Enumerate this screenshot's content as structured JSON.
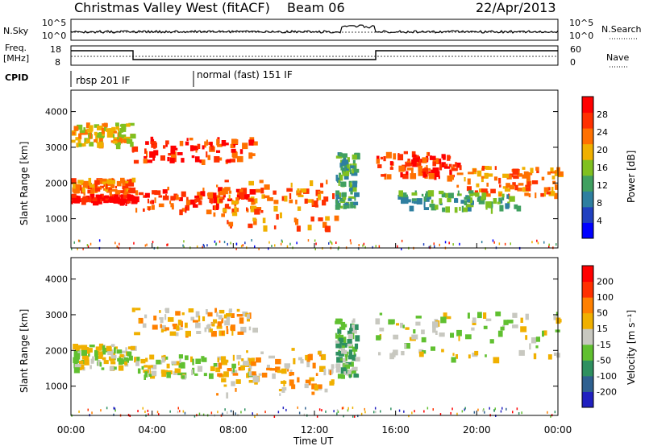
{
  "header": {
    "station": "Christmas Valley West (fitACF)",
    "beam": "Beam 06",
    "date": "22/Apr/2013"
  },
  "noise_panel": {
    "left_label": "N.Sky",
    "left_ticks": [
      "10^5",
      "10^0"
    ],
    "right_ticks": [
      "10^5",
      "10^0"
    ],
    "right_label": "N.Search"
  },
  "freq_panel": {
    "left_label_1": "Freq.",
    "left_label_2": "[MHz]",
    "left_ticks": [
      "18",
      "8"
    ],
    "right_ticks": [
      "60",
      "0"
    ],
    "right_label": "Nave"
  },
  "cpid": {
    "label": "CPID",
    "segments": [
      {
        "label": "rbsp 201 IF",
        "start_hour": 0,
        "end_hour": 6
      },
      {
        "label": "normal (fast) 151 IF",
        "start_hour": 6,
        "end_hour": 24
      }
    ]
  },
  "time_axis": {
    "label": "Time UT",
    "ticks": [
      "00:00",
      "04:00",
      "08:00",
      "12:00",
      "16:00",
      "20:00",
      "00:00"
    ]
  },
  "power_panel": {
    "ylabel": "Slant Range [km]",
    "yticks": [
      "4000",
      "3000",
      "2000",
      "1000"
    ],
    "colorbar_label": "Power [dB]",
    "colorbar_ticks": [
      "28",
      "24",
      "20",
      "16",
      "12",
      "8",
      "4"
    ],
    "colors": [
      "#0000ff",
      "#2040c0",
      "#2e7fa0",
      "#40a060",
      "#80c020",
      "#f0b000",
      "#ff7000",
      "#ff3000",
      "#ff0000"
    ]
  },
  "velocity_panel": {
    "ylabel": "Slant Range [km]",
    "yticks": [
      "4000",
      "3000",
      "2000",
      "1000"
    ],
    "colorbar_label": "Velocity [m s⁻¹]",
    "colorbar_ticks": [
      "200",
      "100",
      "50",
      "15",
      "-15",
      "-50",
      "-100",
      "-200"
    ],
    "colors": [
      "#2020c0",
      "#2e6090",
      "#2e9060",
      "#60c030",
      "#c8c8c0",
      "#f0b000",
      "#ff8000",
      "#ff3000",
      "#ff0000"
    ]
  },
  "chart_data": {
    "type": "heatmap",
    "title": "Christmas Valley West (fitACF)",
    "xlabel": "Time UT",
    "ylabel": "Slant Range [km]",
    "xlim_hours": [
      0,
      24
    ],
    "ylim_km": [
      180,
      4600
    ],
    "power_bands": [
      {
        "t0": 0.0,
        "t1": 3.0,
        "r0": 1500,
        "r1": 1700,
        "level": 8
      },
      {
        "t0": 3.0,
        "t1": 9.0,
        "r0": 1250,
        "r1": 1900,
        "level": 7
      },
      {
        "t0": 0.0,
        "t1": 3.0,
        "r0": 1800,
        "r1": 2150,
        "level": 6
      },
      {
        "t0": 3.0,
        "t1": 9.0,
        "r0": 2600,
        "r1": 3300,
        "level": 7
      },
      {
        "t0": 0.0,
        "t1": 3.0,
        "r0": 3100,
        "r1": 3700,
        "level": 5
      },
      {
        "t0": 7.0,
        "t1": 13.0,
        "r0": 800,
        "r1": 2100,
        "level": 6
      },
      {
        "t0": 13.0,
        "t1": 14.0,
        "r0": 1300,
        "r1": 2900,
        "level": 3
      },
      {
        "t0": 15.0,
        "t1": 19.0,
        "r0": 2200,
        "r1": 2900,
        "level": 7
      },
      {
        "t0": 19.0,
        "t1": 24.0,
        "r0": 1700,
        "r1": 2500,
        "level": 6
      },
      {
        "t0": 16.0,
        "t1": 22.0,
        "r0": 1300,
        "r1": 1800,
        "level": 3
      }
    ],
    "velocity_bands": [
      {
        "t0": 0.0,
        "t1": 3.0,
        "r0": 1500,
        "r1": 2200,
        "level": 4
      },
      {
        "t0": 3.0,
        "t1": 9.0,
        "r0": 1300,
        "r1": 1900,
        "level": 4
      },
      {
        "t0": 3.0,
        "t1": 9.0,
        "r0": 2500,
        "r1": 3200,
        "level": 5
      },
      {
        "t0": 7.0,
        "t1": 13.0,
        "r0": 800,
        "r1": 2100,
        "level": 5
      },
      {
        "t0": 13.0,
        "t1": 14.0,
        "r0": 1300,
        "r1": 2900,
        "level": 3
      },
      {
        "t0": 15.0,
        "t1": 24.0,
        "r0": 1800,
        "r1": 3100,
        "level": 4
      }
    ]
  }
}
